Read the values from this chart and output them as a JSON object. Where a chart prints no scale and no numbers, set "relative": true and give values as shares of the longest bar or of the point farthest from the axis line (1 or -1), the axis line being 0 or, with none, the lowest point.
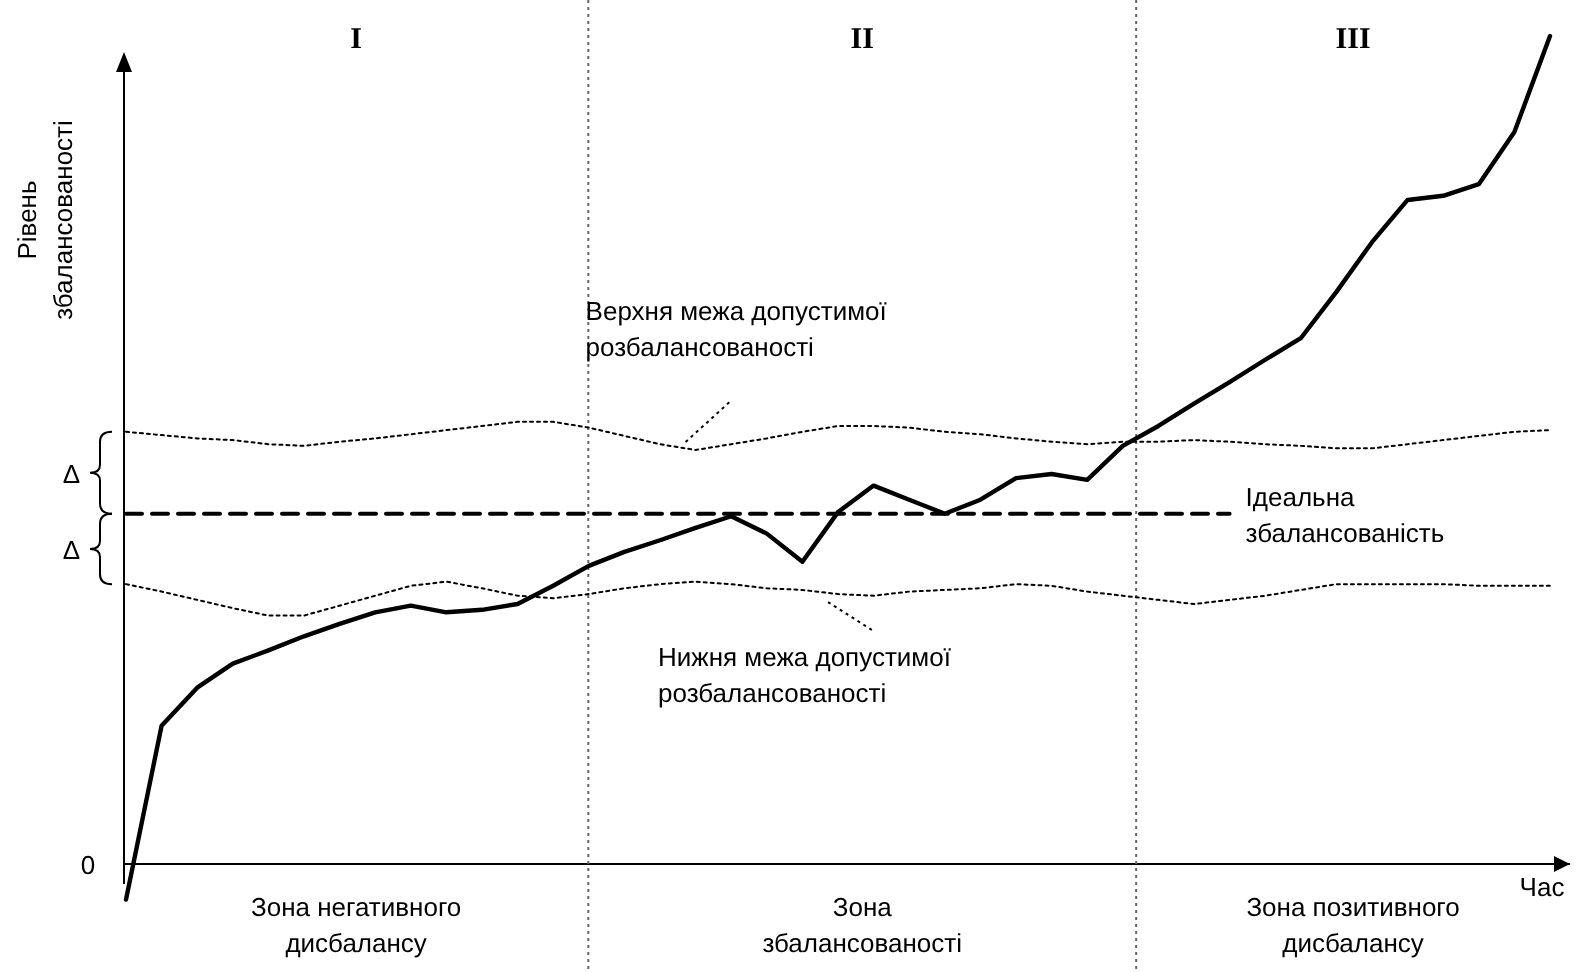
{
  "chart_data": {
    "type": "line",
    "relative": true,
    "xlabel": "Час",
    "ylabel": "Рівень збалансованості",
    "categories": [
      null,
      null,
      null,
      null,
      null,
      null,
      null,
      null,
      null,
      null,
      null,
      null,
      null,
      null,
      null,
      null,
      null,
      null,
      null,
      null,
      null,
      null,
      null,
      null,
      null,
      null,
      null,
      null,
      null,
      null,
      null,
      null,
      null,
      null,
      null,
      null,
      null,
      null,
      null,
      null,
      null
    ],
    "series": [
      {
        "color": "#000000",
        "line_style": "solid",
        "values": [
          -0.043,
          0.167,
          0.213,
          0.242,
          0.258,
          0.275,
          0.29,
          0.304,
          0.312,
          0.304,
          0.307,
          0.314,
          0.336,
          0.36,
          0.377,
          0.391,
          0.406,
          0.42,
          0.399,
          0.365,
          0.425,
          0.457,
          0.44,
          0.423,
          0.44,
          0.466,
          0.471,
          0.464,
          0.505,
          0.529,
          0.556,
          0.582,
          0.609,
          0.635,
          0.691,
          0.751,
          0.802,
          0.807,
          0.821,
          0.884,
          1.0
        ]
      },
      {
        "name": "Верхня межа допустимої розбалансованості",
        "color": "#000000",
        "line_style": "dotted",
        "values": [
          0.522,
          0.518,
          0.514,
          0.512,
          0.507,
          0.505,
          0.51,
          0.514,
          0.519,
          0.524,
          0.529,
          0.534,
          0.534,
          0.527,
          0.517,
          0.507,
          0.5,
          0.507,
          0.514,
          0.522,
          0.529,
          0.529,
          0.527,
          0.522,
          0.519,
          0.514,
          0.51,
          0.507,
          0.51,
          0.51,
          0.512,
          0.51,
          0.507,
          0.505,
          0.502,
          0.502,
          0.507,
          0.512,
          0.517,
          0.522,
          0.524
        ]
      },
      {
        "name": "Нижня межа допустимої розбалансованості",
        "color": "#000000",
        "line_style": "dotted",
        "values": [
          0.338,
          0.329,
          0.319,
          0.309,
          0.3,
          0.3,
          0.312,
          0.324,
          0.336,
          0.341,
          0.333,
          0.324,
          0.321,
          0.326,
          0.333,
          0.338,
          0.341,
          0.338,
          0.333,
          0.331,
          0.326,
          0.324,
          0.329,
          0.331,
          0.333,
          0.338,
          0.336,
          0.329,
          0.324,
          0.319,
          0.314,
          0.319,
          0.324,
          0.331,
          0.338,
          0.338,
          0.338,
          0.338,
          0.336,
          0.336,
          0.336
        ]
      },
      {
        "name": "Ідеальна збалансованість",
        "color": "#000000",
        "line_style": "dashed",
        "values": [
          0.423,
          0.423,
          0.423,
          0.423,
          0.423,
          0.423,
          0.423,
          0.423,
          0.423,
          0.423,
          0.423,
          0.423,
          0.423,
          0.423,
          0.423,
          0.423,
          0.423,
          0.423,
          0.423,
          0.423,
          0.423,
          0.423,
          0.423,
          0.423,
          0.423,
          0.423,
          0.423,
          0.423,
          0.423,
          0.423,
          0.423,
          0.423,
          null,
          null,
          null,
          null,
          null,
          null,
          null,
          null,
          null
        ]
      }
    ],
    "annotations": [
      "I",
      "II",
      "III",
      "Зона негативного дисбалансу",
      "Зона збалансованості",
      "Зона позитивного дисбалансу",
      "Δ",
      "Δ",
      "0"
    ]
  }
}
